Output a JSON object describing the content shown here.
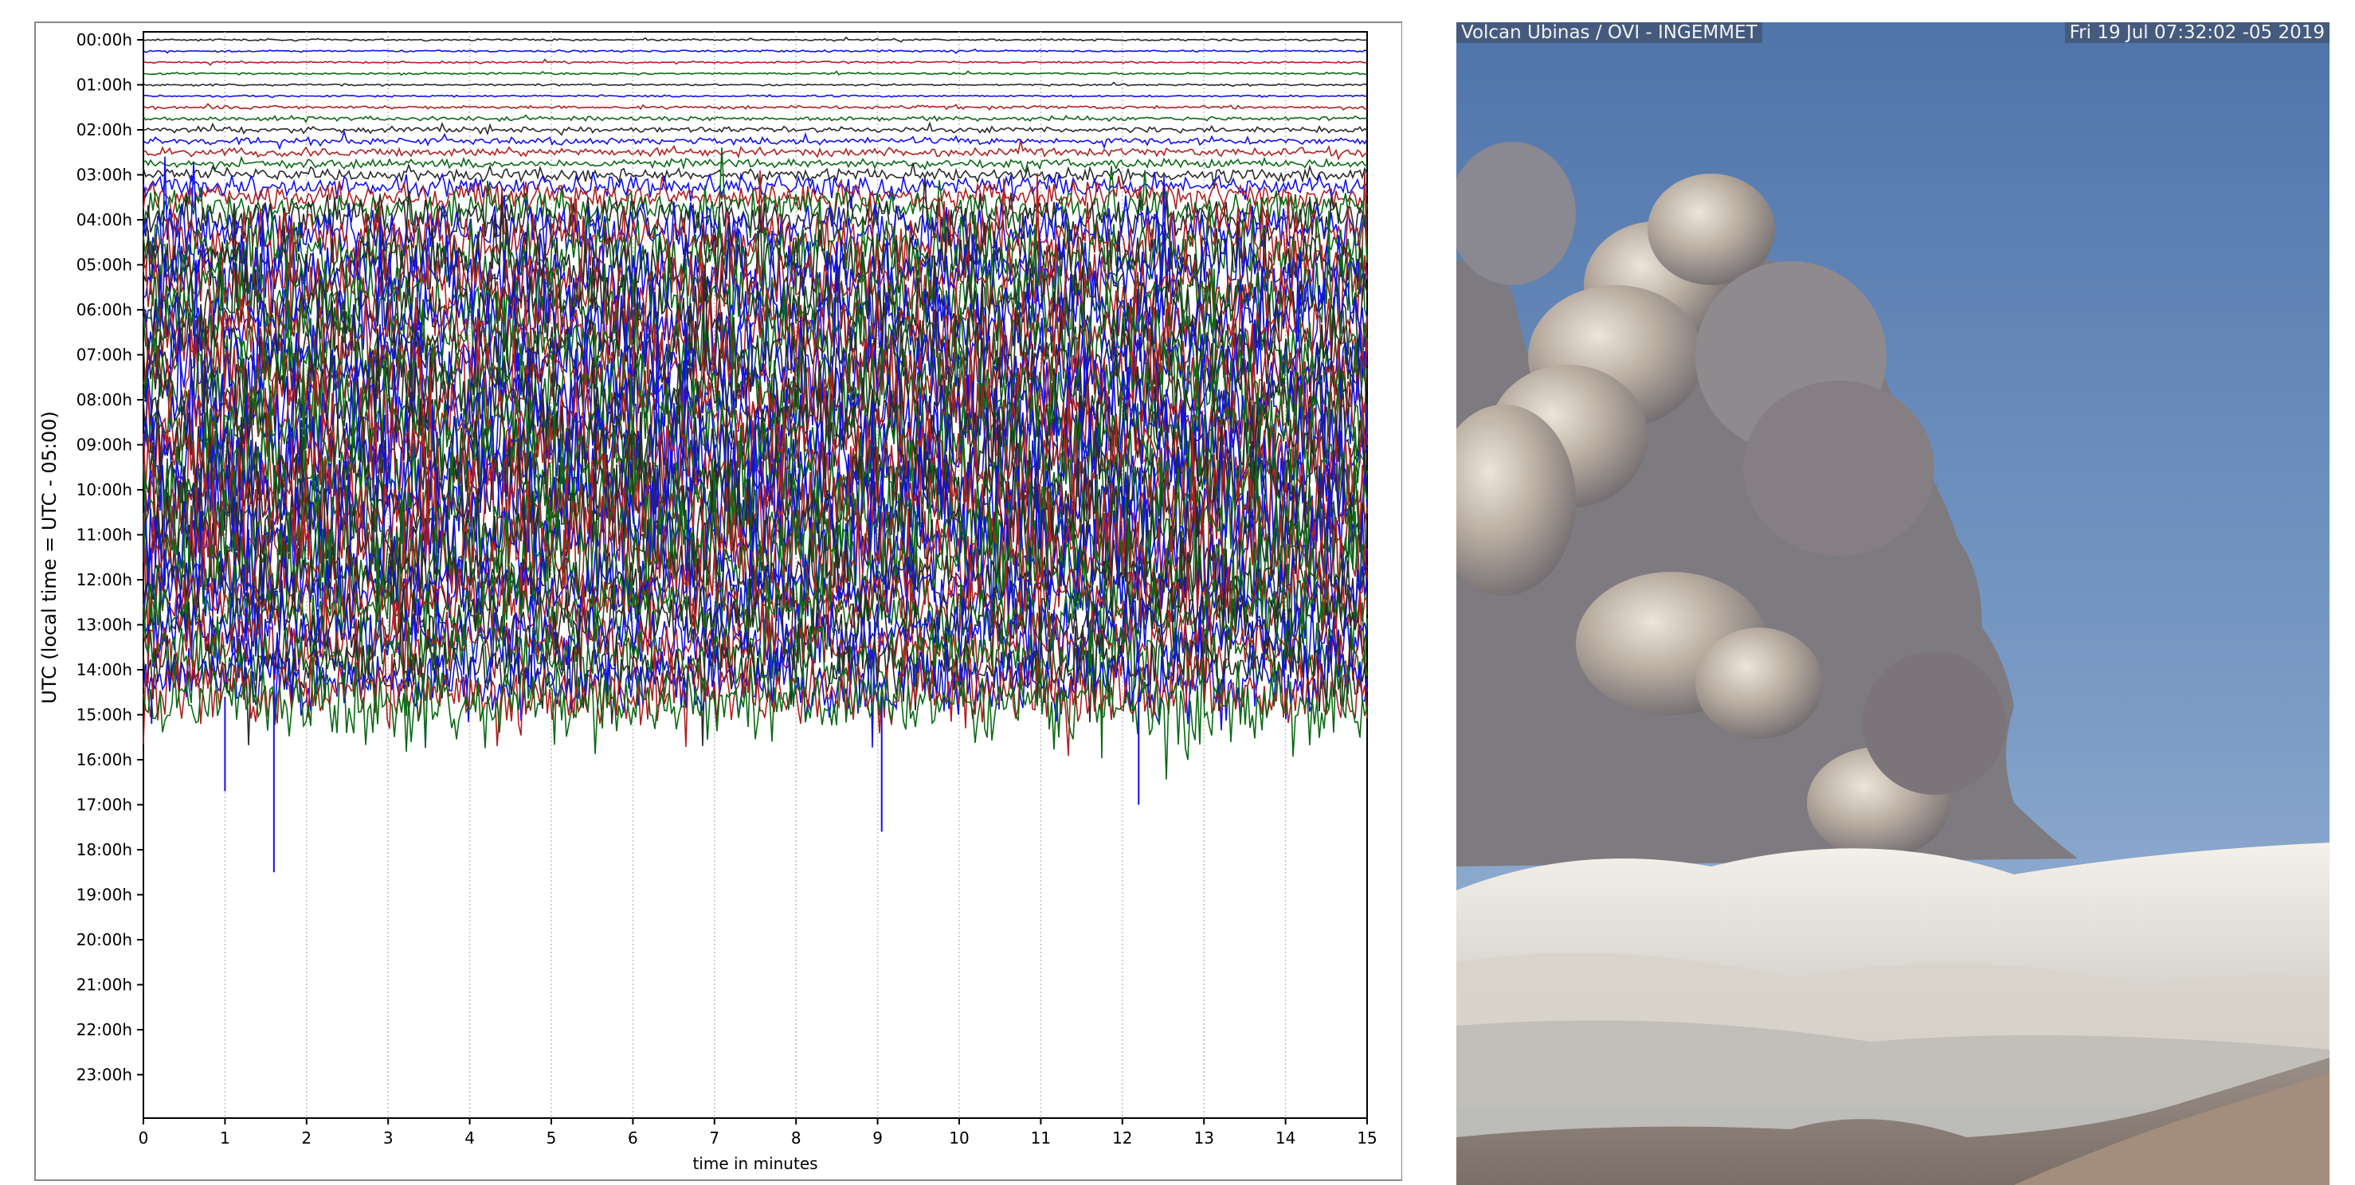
{
  "chart_data": {
    "type": "helicorder",
    "ylabel": "UTC (local time = UTC - 05:00)",
    "xlabel": "time in minutes",
    "x_ticks": [
      0,
      1,
      2,
      3,
      4,
      5,
      6,
      7,
      8,
      9,
      10,
      11,
      12,
      13,
      14,
      15
    ],
    "xlim": [
      0,
      15
    ],
    "y_tick_labels": [
      "00:00h",
      "01:00h",
      "02:00h",
      "03:00h",
      "04:00h",
      "05:00h",
      "06:00h",
      "07:00h",
      "08:00h",
      "09:00h",
      "10:00h",
      "11:00h",
      "12:00h",
      "13:00h",
      "14:00h",
      "15:00h",
      "16:00h",
      "17:00h",
      "18:00h",
      "19:00h",
      "20:00h",
      "21:00h",
      "22:00h",
      "23:00h"
    ],
    "line_colors": [
      "#2a2a2a",
      "#1010ee",
      "#b02020",
      "#0a6a14"
    ],
    "grid": "vertical dotted",
    "traces_per_hour": 4,
    "activity_end_hour": 15
  },
  "webcam": {
    "title": "Volcan Ubinas / OVI - INGEMMET",
    "timestamp": "Fri 19 Jul 07:32:02 -05 2019"
  }
}
